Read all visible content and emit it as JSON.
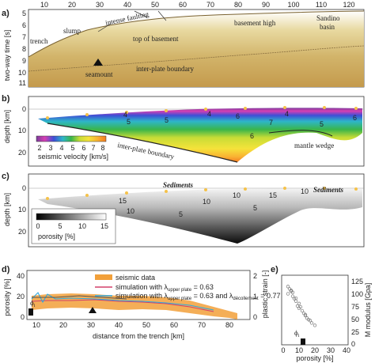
{
  "top_axis": {
    "ticks": [
      "10",
      "20",
      "30",
      "40",
      "50",
      "60",
      "70",
      "80",
      "90",
      "100",
      "110",
      "120"
    ]
  },
  "panel_a": {
    "letter": "a)",
    "ylabel": "two-way time [s]",
    "yticks": [
      "5",
      "6",
      "7",
      "8",
      "9",
      "10",
      "11"
    ],
    "annotations": {
      "trench": "trench",
      "slump": "slump",
      "intense_faulting": "intense faulting",
      "top_basement": "top of basement",
      "basement_high": "basement high",
      "sandino": "Sandino",
      "basin": "basin",
      "interplate": "inter-plate boundary",
      "seamount": "seamount"
    }
  },
  "panel_b": {
    "letter": "b)",
    "ylabel": "depth [km]",
    "yticks": [
      "0",
      "10",
      "20"
    ],
    "contour_labels": [
      "4",
      "5",
      "4",
      "5",
      "4",
      "6",
      "5",
      "6",
      "7",
      "6"
    ],
    "colorbar_label": "seismic velocity [km/s]",
    "colorbar_ticks": [
      "2",
      "3",
      "4",
      "5",
      "6",
      "7",
      "8"
    ],
    "colorbar_colors": [
      "#7a3c9c",
      "#d63fb2",
      "#3d4fd6",
      "#2eb6c8",
      "#39b54a",
      "#c8dc36",
      "#f5e33a",
      "#f9b233",
      "#f47b20"
    ],
    "annotations": {
      "interplate": "inter-plate boundary",
      "mantle_wedge": "mantle wedge"
    }
  },
  "panel_c": {
    "letter": "c)",
    "ylabel": "depth [km]",
    "yticks": [
      "0",
      "10",
      "20"
    ],
    "contour_labels": [
      "15",
      "10",
      "10",
      "5",
      "10",
      "15",
      "10",
      "5"
    ],
    "colorbar_label": "porosity [%]",
    "colorbar_ticks": [
      "0",
      "5",
      "10",
      "15"
    ],
    "annotations": {
      "sediments_left": "Sediments",
      "sediments_right": "Sediments"
    }
  },
  "panel_d": {
    "letter": "d)",
    "ylabel": "porosity [%]",
    "ylabel_right": "plastic strain [-]",
    "xlabel": "distance from the trench [km]",
    "xticks": [
      "10",
      "20",
      "30",
      "40",
      "50",
      "60",
      "70",
      "80"
    ],
    "yticks": [
      "0",
      "20",
      "40"
    ],
    "yticks_right": [
      "0",
      "1",
      "2"
    ],
    "phi_label": "ϕ",
    "phi_sub": "i",
    "legend": [
      {
        "label": "seismic data",
        "color": "#f2a03a"
      },
      {
        "label": "simulation with λ",
        "sub": "upper plate",
        "value": " = 0.63",
        "color": "#d3406a"
      },
      {
        "label": "simulation with λ",
        "sub": "upper plate",
        "value": " = 0.63 and λ",
        "sub2": "décollement",
        "value2": " = 0.77",
        "color": "#2ea8e0"
      }
    ]
  },
  "panel_e": {
    "letter": "e)",
    "ylabel_right": "M modulus [Gpa]",
    "xlabel": "porosity [%]",
    "xticks": [
      "0",
      "10",
      "20",
      "30",
      "40"
    ],
    "yticks_right": [
      "0",
      "25",
      "50",
      "75",
      "100",
      "125"
    ],
    "phi_label": "ϕ",
    "phi_sub": "i",
    "chart_data": {
      "type": "scatter",
      "x": [
        3,
        4,
        5,
        3,
        6,
        7,
        8,
        9,
        10,
        12,
        13,
        14,
        15,
        17,
        18,
        20,
        5,
        6,
        8,
        10,
        11,
        14,
        16
      ],
      "y": [
        120,
        115,
        110,
        105,
        100,
        95,
        90,
        80,
        75,
        70,
        65,
        60,
        55,
        50,
        45,
        40,
        112,
        108,
        96,
        85,
        78,
        62,
        52
      ],
      "xlim": [
        0,
        40
      ],
      "ylim": [
        0,
        140
      ],
      "xlabel": "porosity [%]",
      "ylabel": "M modulus [Gpa]"
    }
  }
}
